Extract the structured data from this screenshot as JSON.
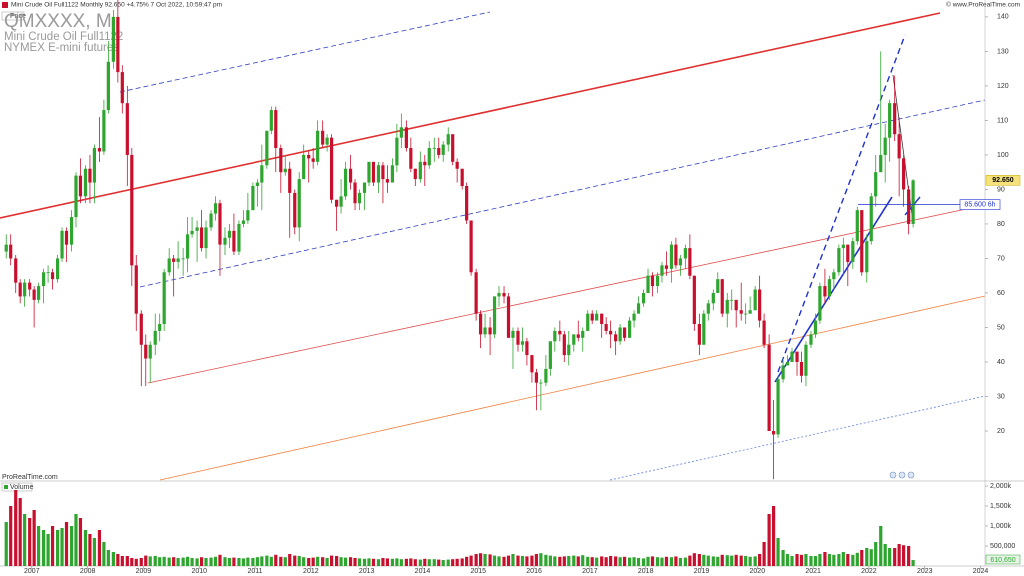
{
  "header": {
    "title": "Mini Crude Oil Full1122 Monthly 92.650 +4.75% 7 Oct 2022, 10:59:47 pm",
    "copyright": "© www.ProRealTime.com"
  },
  "chart_data": [
    {
      "type": "candlestick",
      "panel_label": "Price",
      "watermark": [
        "QMXXXX, M",
        "Mini Crude Oil Full1122",
        "NYMEX E-mini futures"
      ],
      "footer": "ProRealTime.com",
      "up_color": "#2ea52e",
      "down_color": "#c8102e",
      "xlim": [
        2006.43,
        2024.08
      ],
      "ylim": [
        5.8,
        142
      ],
      "yticks": [
        20,
        30,
        40,
        50,
        60,
        70,
        80,
        90,
        100,
        110,
        120,
        130,
        140
      ],
      "price_tag": {
        "value": 92.65,
        "label": "92.650"
      },
      "level_tag": {
        "value": 85.6,
        "label": "85.600 6h"
      },
      "x": [
        2006.5,
        2006.58,
        2006.67,
        2006.75,
        2006.83,
        2006.92,
        2007,
        2007.08,
        2007.17,
        2007.25,
        2007.33,
        2007.42,
        2007.5,
        2007.58,
        2007.67,
        2007.75,
        2007.83,
        2007.92,
        2008,
        2008.08,
        2008.17,
        2008.25,
        2008.33,
        2008.42,
        2008.5,
        2008.58,
        2008.67,
        2008.75,
        2008.83,
        2008.92,
        2009,
        2009.08,
        2009.17,
        2009.25,
        2009.33,
        2009.42,
        2009.5,
        2009.58,
        2009.67,
        2009.75,
        2009.83,
        2009.92,
        2010,
        2010.08,
        2010.17,
        2010.25,
        2010.33,
        2010.42,
        2010.5,
        2010.58,
        2010.67,
        2010.75,
        2010.83,
        2010.92,
        2011,
        2011.08,
        2011.17,
        2011.25,
        2011.33,
        2011.42,
        2011.5,
        2011.58,
        2011.67,
        2011.75,
        2011.83,
        2011.92,
        2012,
        2012.08,
        2012.17,
        2012.25,
        2012.33,
        2012.42,
        2012.5,
        2012.58,
        2012.67,
        2012.75,
        2012.83,
        2012.92,
        2013,
        2013.08,
        2013.17,
        2013.25,
        2013.33,
        2013.42,
        2013.5,
        2013.58,
        2013.67,
        2013.75,
        2013.83,
        2013.92,
        2014,
        2014.08,
        2014.17,
        2014.25,
        2014.33,
        2014.42,
        2014.5,
        2014.58,
        2014.67,
        2014.75,
        2014.83,
        2014.92,
        2015,
        2015.08,
        2015.17,
        2015.25,
        2015.33,
        2015.42,
        2015.5,
        2015.58,
        2015.67,
        2015.75,
        2015.83,
        2015.92,
        2016,
        2016.08,
        2016.17,
        2016.25,
        2016.33,
        2016.42,
        2016.5,
        2016.58,
        2016.67,
        2016.75,
        2016.83,
        2016.92,
        2017,
        2017.08,
        2017.17,
        2017.25,
        2017.33,
        2017.42,
        2017.5,
        2017.58,
        2017.67,
        2017.75,
        2017.83,
        2017.92,
        2018,
        2018.08,
        2018.17,
        2018.25,
        2018.33,
        2018.42,
        2018.5,
        2018.58,
        2018.67,
        2018.75,
        2018.83,
        2018.92,
        2019,
        2019.08,
        2019.17,
        2019.25,
        2019.33,
        2019.42,
        2019.5,
        2019.58,
        2019.67,
        2019.75,
        2019.83,
        2019.92,
        2020,
        2020.08,
        2020.17,
        2020.25,
        2020.33,
        2020.42,
        2020.5,
        2020.58,
        2020.67,
        2020.75,
        2020.83,
        2020.92,
        2021,
        2021.08,
        2021.17,
        2021.25,
        2021.33,
        2021.42,
        2021.5,
        2021.58,
        2021.67,
        2021.75,
        2021.83,
        2021.92,
        2022,
        2022.08,
        2022.17,
        2022.25,
        2022.33,
        2022.42,
        2022.5,
        2022.58,
        2022.67,
        2022.75
      ],
      "open": [
        72,
        74,
        70,
        63,
        59,
        63,
        61,
        58,
        62,
        66,
        66,
        64,
        70,
        78,
        74,
        82,
        94,
        88,
        96,
        92,
        102,
        101,
        113,
        127,
        140,
        124,
        115,
        100,
        68,
        54,
        45,
        41,
        45,
        49,
        51,
        66,
        70,
        69,
        70,
        70,
        77,
        78,
        79,
        73,
        79,
        83,
        86,
        74,
        76,
        78,
        72,
        80,
        81,
        84,
        91,
        92,
        97,
        107,
        113,
        102,
        95,
        96,
        89,
        79,
        93,
        100,
        99,
        98,
        107,
        103,
        105,
        87,
        85,
        88,
        96,
        92,
        86,
        89,
        92,
        98,
        92,
        97,
        93,
        92,
        97,
        105,
        108,
        102,
        96,
        93,
        98,
        97,
        102,
        102,
        100,
        103,
        106,
        98,
        96,
        91,
        81,
        66,
        54,
        48,
        50,
        48,
        59,
        60,
        59,
        47,
        49,
        45,
        46,
        42,
        37,
        34,
        34,
        38,
        46,
        49,
        48,
        42,
        45,
        48,
        47,
        49,
        54,
        52,
        54,
        51,
        49,
        48,
        46,
        50,
        47,
        52,
        54,
        57,
        60,
        65,
        62,
        65,
        68,
        67,
        74,
        68,
        70,
        73,
        65,
        51,
        45,
        54,
        57,
        60,
        64,
        54,
        58,
        58,
        55,
        54,
        54,
        55,
        61,
        52,
        45,
        20,
        19,
        35,
        39,
        40,
        43,
        40,
        36,
        45,
        48,
        52,
        62,
        59,
        64,
        66,
        73,
        74,
        69,
        75,
        84,
        66,
        75,
        88,
        95,
        100,
        105,
        115,
        106,
        99,
        90,
        80
      ],
      "high": [
        77,
        77,
        71,
        64,
        64,
        64,
        62,
        63,
        67,
        68,
        67,
        71,
        79,
        79,
        84,
        95,
        99,
        97,
        100,
        103,
        111,
        116,
        133,
        142,
        147,
        126,
        120,
        102,
        71,
        55,
        48,
        46,
        54,
        54,
        67,
        73,
        71,
        75,
        73,
        82,
        82,
        81,
        84,
        81,
        84,
        88,
        87,
        79,
        80,
        83,
        81,
        84,
        89,
        92,
        93,
        103,
        107,
        114,
        114,
        103,
        100,
        98,
        90,
        95,
        103,
        101,
        102,
        110,
        110,
        106,
        106,
        87,
        93,
        98,
        100,
        93,
        90,
        92,
        98,
        98,
        98,
        98,
        97,
        99,
        109,
        112,
        110,
        105,
        96,
        101,
        100,
        104,
        105,
        105,
        104,
        108,
        106,
        99,
        96,
        92,
        81,
        67,
        55,
        54,
        53,
        59,
        62,
        62,
        60,
        50,
        50,
        50,
        47,
        42,
        38,
        35,
        42,
        46,
        50,
        52,
        49,
        49,
        48,
        52,
        50,
        55,
        55,
        55,
        54,
        53,
        52,
        49,
        51,
        50,
        53,
        55,
        59,
        61,
        67,
        66,
        66,
        69,
        72,
        75,
        76,
        71,
        74,
        77,
        65,
        54,
        55,
        58,
        61,
        66,
        64,
        60,
        61,
        58,
        63,
        57,
        59,
        62,
        65,
        54,
        48,
        29,
        36,
        41,
        42,
        44,
        43,
        43,
        46,
        49,
        54,
        63,
        67,
        65,
        67,
        74,
        76,
        74,
        76,
        85,
        84,
        77,
        89,
        100,
        130,
        109,
        116,
        123,
        111,
        100,
        91,
        93
      ],
      "low": [
        70,
        68,
        60,
        57,
        56,
        59,
        50,
        57,
        57,
        63,
        61,
        63,
        69,
        69,
        72,
        79,
        86,
        86,
        86,
        86,
        98,
        100,
        112,
        125,
        121,
        112,
        91,
        62,
        49,
        33,
        33,
        34,
        42,
        46,
        49,
        65,
        59,
        67,
        65,
        66,
        76,
        69,
        72,
        70,
        78,
        81,
        65,
        71,
        73,
        71,
        71,
        79,
        80,
        84,
        85,
        84,
        96,
        106,
        95,
        89,
        94,
        76,
        77,
        75,
        93,
        92,
        96,
        97,
        102,
        101,
        86,
        78,
        83,
        87,
        90,
        84,
        84,
        84,
        91,
        91,
        89,
        86,
        89,
        92,
        95,
        102,
        101,
        95,
        91,
        92,
        91,
        96,
        98,
        99,
        98,
        101,
        97,
        92,
        90,
        80,
        65,
        52,
        44,
        47,
        42,
        47,
        56,
        57,
        47,
        38,
        43,
        43,
        39,
        34,
        26,
        26,
        33,
        36,
        43,
        46,
        40,
        39,
        43,
        46,
        43,
        49,
        51,
        52,
        47,
        48,
        44,
        42,
        45,
        46,
        47,
        50,
        54,
        56,
        60,
        59,
        60,
        63,
        65,
        63,
        67,
        65,
        67,
        64,
        49,
        42,
        45,
        52,
        55,
        60,
        53,
        50,
        55,
        50,
        52,
        51,
        54,
        55,
        50,
        44,
        20,
        6,
        18,
        34,
        39,
        40,
        36,
        34,
        33,
        44,
        47,
        51,
        57,
        58,
        61,
        65,
        65,
        62,
        67,
        74,
        65,
        63,
        74,
        85,
        95,
        92,
        98,
        104,
        88,
        85,
        77,
        79
      ],
      "close": [
        74,
        70,
        63,
        59,
        63,
        61,
        58,
        62,
        66,
        66,
        64,
        70,
        78,
        74,
        82,
        94,
        88,
        96,
        92,
        102,
        101,
        113,
        127,
        140,
        124,
        115,
        100,
        68,
        54,
        45,
        41,
        45,
        49,
        51,
        66,
        70,
        69,
        70,
        70,
        77,
        78,
        79,
        73,
        79,
        83,
        86,
        74,
        76,
        78,
        72,
        80,
        81,
        84,
        91,
        92,
        97,
        107,
        113,
        102,
        95,
        96,
        89,
        79,
        93,
        100,
        99,
        98,
        107,
        103,
        105,
        87,
        85,
        88,
        96,
        92,
        86,
        89,
        92,
        98,
        92,
        97,
        93,
        92,
        97,
        105,
        108,
        102,
        96,
        93,
        98,
        97,
        102,
        102,
        100,
        103,
        106,
        98,
        96,
        91,
        81,
        66,
        54,
        48,
        50,
        48,
        59,
        60,
        59,
        47,
        49,
        45,
        46,
        42,
        37,
        34,
        34,
        38,
        46,
        49,
        48,
        42,
        45,
        48,
        47,
        49,
        54,
        52,
        54,
        51,
        49,
        48,
        46,
        50,
        47,
        52,
        54,
        57,
        60,
        65,
        62,
        65,
        68,
        67,
        74,
        68,
        70,
        73,
        65,
        51,
        45,
        54,
        57,
        60,
        64,
        54,
        58,
        58,
        55,
        54,
        54,
        55,
        61,
        52,
        45,
        20,
        19,
        35,
        39,
        40,
        43,
        40,
        36,
        45,
        48,
        52,
        62,
        59,
        64,
        66,
        73,
        74,
        69,
        75,
        84,
        66,
        75,
        88,
        95,
        100,
        105,
        115,
        106,
        99,
        90,
        80,
        92.65
      ]
    },
    {
      "type": "bar",
      "panel_label": "Volume",
      "color": "#2ea52e",
      "volume_tag": "610,650",
      "xlim": [
        2006.43,
        2024.08
      ],
      "xticks": [
        2007,
        2008,
        2009,
        2010,
        2011,
        2012,
        2013,
        2014,
        2015,
        2016,
        2017,
        2018,
        2019,
        2020,
        2021,
        2022,
        2023,
        2024
      ],
      "ylim": [
        0,
        2100000
      ],
      "yticks": [
        {
          "value": 500000,
          "label": "500,000"
        },
        {
          "value": 1000000,
          "label": "1,000k"
        },
        {
          "value": 1500000,
          "label": "1,500k"
        },
        {
          "value": 2000000,
          "label": "2,000k"
        }
      ],
      "values": [
        1100000,
        1500000,
        1900000,
        1700000,
        1300000,
        1200000,
        1400000,
        1000000,
        900000,
        800000,
        1000000,
        900000,
        950000,
        1100000,
        1000000,
        1300000,
        1200000,
        900000,
        800000,
        700000,
        900000,
        600000,
        400000,
        350000,
        300000,
        250000,
        250000,
        200000,
        180000,
        200000,
        260000,
        240000,
        250000,
        220000,
        230000,
        210000,
        220000,
        200000,
        210000,
        230000,
        200000,
        190000,
        220000,
        200000,
        210000,
        230000,
        280000,
        220000,
        200000,
        210000,
        200000,
        190000,
        210000,
        200000,
        220000,
        240000,
        260000,
        230000,
        280000,
        230000,
        220000,
        300000,
        260000,
        250000,
        220000,
        200000,
        210000,
        230000,
        220000,
        200000,
        260000,
        250000,
        220000,
        210000,
        220000,
        200000,
        190000,
        180000,
        190000,
        180000,
        170000,
        200000,
        190000,
        180000,
        190000,
        170000,
        180000,
        190000,
        170000,
        160000,
        180000,
        170000,
        170000,
        160000,
        150000,
        160000,
        170000,
        180000,
        190000,
        230000,
        260000,
        300000,
        320000,
        300000,
        290000,
        260000,
        240000,
        230000,
        260000,
        300000,
        260000,
        250000,
        240000,
        260000,
        300000,
        320000,
        280000,
        260000,
        240000,
        230000,
        240000,
        250000,
        260000,
        240000,
        270000,
        230000,
        220000,
        210000,
        240000,
        220000,
        250000,
        240000,
        220000,
        230000,
        210000,
        220000,
        200000,
        190000,
        230000,
        240000,
        220000,
        210000,
        230000,
        220000,
        240000,
        200000,
        210000,
        260000,
        320000,
        300000,
        280000,
        260000,
        240000,
        230000,
        280000,
        270000,
        260000,
        280000,
        260000,
        250000,
        230000,
        240000,
        300000,
        600000,
        1300000,
        1500000,
        700000,
        400000,
        300000,
        250000,
        300000,
        280000,
        300000,
        250000,
        250000,
        300000,
        350000,
        300000,
        280000,
        300000,
        350000,
        300000,
        280000,
        330000,
        400000,
        450000,
        420000,
        600000,
        1000000,
        550000,
        450000,
        450000,
        550000,
        520000,
        500000,
        150000
      ]
    }
  ]
}
